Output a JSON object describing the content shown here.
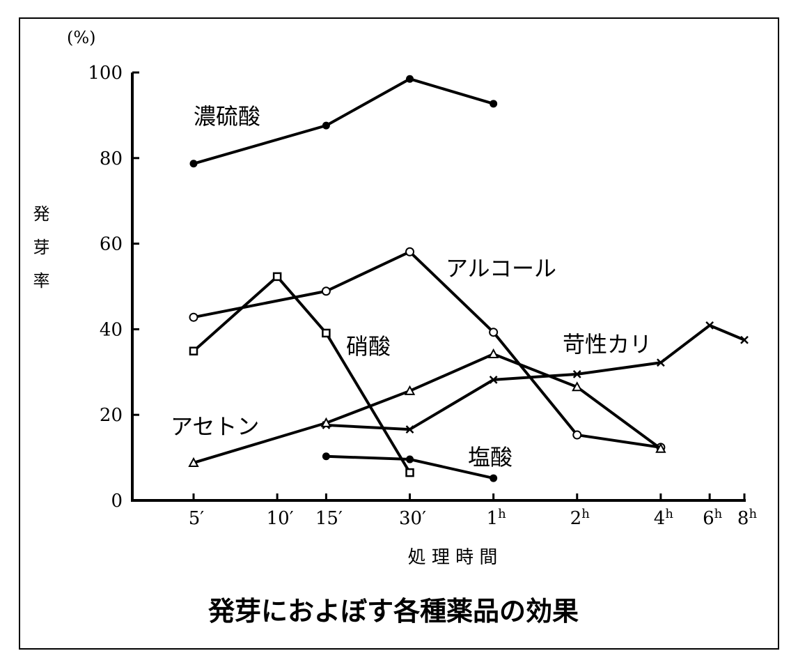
{
  "chart_data": {
    "type": "line",
    "title": "発芽におよぼす各種薬品の効果",
    "xlabel": "処 理 時 間",
    "ylabel": "発芽率",
    "yunit": "(%)",
    "x_scale": "log",
    "ylim": [
      0,
      100
    ],
    "yticks": [
      0,
      20,
      40,
      60,
      80,
      100
    ],
    "grid": false,
    "legend": "inline labels",
    "xticks": [
      {
        "value": 5,
        "label": "5′"
      },
      {
        "value": 10,
        "label": "10′"
      },
      {
        "value": 15,
        "label": "15′"
      },
      {
        "value": 30,
        "label": "30′"
      },
      {
        "value": 60,
        "label": "1",
        "sup": "h"
      },
      {
        "value": 120,
        "label": "2",
        "sup": "h"
      },
      {
        "value": 240,
        "label": "4",
        "sup": "h"
      },
      {
        "value": 360,
        "label": "6",
        "sup": "h"
      },
      {
        "value": 480,
        "label": "8",
        "sup": "h"
      }
    ],
    "series": [
      {
        "name": "濃硫酸",
        "marker": "filled-circle",
        "x": [
          5,
          15,
          30,
          60
        ],
        "y": [
          78.7,
          87.6,
          98.5,
          92.7
        ]
      },
      {
        "name": "アルコール",
        "marker": "open-circle",
        "x": [
          5,
          15,
          30,
          60,
          120,
          240
        ],
        "y": [
          42.8,
          48.9,
          58.1,
          39.3,
          15.3,
          12.4
        ]
      },
      {
        "name": "硝酸",
        "marker": "open-square",
        "x": [
          5,
          10,
          15,
          30
        ],
        "y": [
          34.9,
          52.3,
          39.1,
          6.5
        ]
      },
      {
        "name": "苛性カリ",
        "marker": "cross",
        "x": [
          15,
          30,
          60,
          120,
          240,
          360,
          480
        ],
        "y": [
          17.6,
          16.6,
          28.2,
          29.5,
          32.2,
          40.9,
          37.5
        ]
      },
      {
        "name": "アセトン",
        "marker": "open-triangle",
        "x": [
          5,
          15,
          30,
          60,
          120,
          240
        ],
        "y": [
          8.8,
          18.1,
          25.6,
          34.2,
          26.5,
          12.1
        ]
      },
      {
        "name": "塩酸",
        "marker": "filled-circle",
        "x": [
          15,
          30,
          60
        ],
        "y": [
          10.3,
          9.6,
          5.2
        ]
      }
    ]
  }
}
